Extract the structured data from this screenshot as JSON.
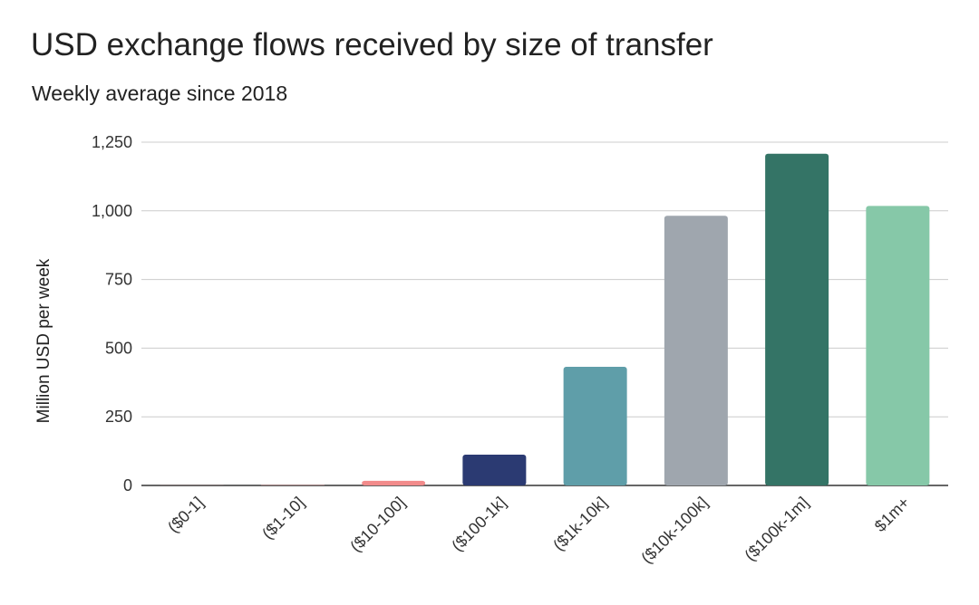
{
  "chart_data": {
    "type": "bar",
    "title": "USD exchange flows received by size of transfer",
    "subtitle": "Weekly average since 2018",
    "xlabel": "",
    "ylabel": "Million USD per week",
    "ylim": [
      0,
      1250
    ],
    "yticks": [
      "0",
      "250",
      "500",
      "750",
      "1,000",
      "1,250"
    ],
    "ytick_values": [
      0,
      250,
      500,
      750,
      1000,
      1250
    ],
    "grid": true,
    "legend": "none",
    "categories": [
      "($0-1]",
      "($1-10]",
      "($10-100]",
      "($100-1k]",
      "($1k-10k]",
      "($10k-100k]",
      "($100k-1m]",
      "$1m+"
    ],
    "values": [
      0.3,
      1,
      17,
      112,
      432,
      982,
      1208,
      1018
    ],
    "colors": [
      "#f28b8b",
      "#f28b8b",
      "#f28b8b",
      "#2b3a72",
      "#5f9ea9",
      "#9fa6ae",
      "#347466",
      "#86c8a8"
    ]
  }
}
